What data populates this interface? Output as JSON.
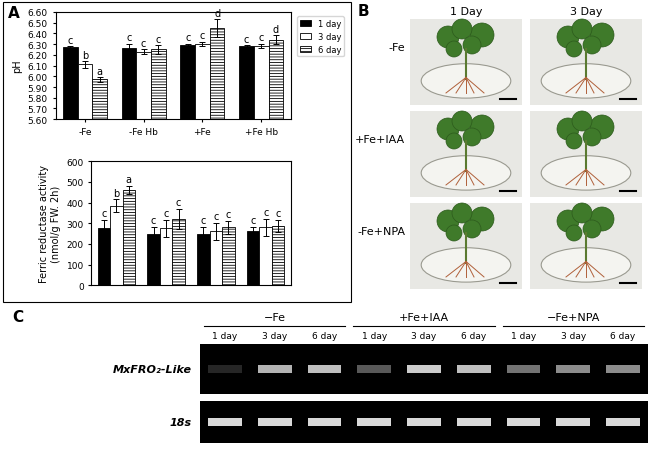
{
  "chart_data": [
    {
      "type": "bar",
      "panel": "A",
      "ylabel": "pH",
      "categories": [
        "-Fe",
        "-Fe Hb",
        "+Fe",
        "+Fe Hb"
      ],
      "ylim": [
        5.6,
        6.6
      ],
      "yticks": [
        {
          "value": 5.6,
          "label": "5.60"
        },
        {
          "value": 5.7,
          "label": "5.70"
        },
        {
          "value": 5.8,
          "label": "5.80"
        },
        {
          "value": 5.9,
          "label": "5.90"
        },
        {
          "value": 6.0,
          "label": "6.00"
        },
        {
          "value": 6.1,
          "label": "6.10"
        },
        {
          "value": 6.2,
          "label": "6.20"
        },
        {
          "value": 6.3,
          "label": "6.30"
        },
        {
          "value": 6.4,
          "label": "6.40"
        },
        {
          "value": 6.5,
          "label": "6.50"
        },
        {
          "value": 6.6,
          "label": "6.60"
        }
      ],
      "legend": "upper right",
      "series": [
        {
          "name": "1 day",
          "color": "#000000",
          "values": [
            6.27,
            6.26,
            6.29,
            6.28
          ],
          "errors": [
            0.01,
            0.04,
            0.01,
            0.01
          ],
          "letters": [
            "c",
            "c",
            "c",
            "c"
          ]
        },
        {
          "name": "3 day",
          "color": "#ffffff",
          "values": [
            6.11,
            6.23,
            6.3,
            6.28
          ],
          "errors": [
            0.03,
            0.02,
            0.02,
            0.02
          ],
          "letters": [
            "b",
            "c",
            "c",
            "c"
          ]
        },
        {
          "name": "6 day",
          "color": "#ffffff",
          "values": [
            5.97,
            6.25,
            6.45,
            6.34
          ],
          "errors": [
            0.02,
            0.04,
            0.08,
            0.04
          ],
          "letters": [
            "a",
            "c",
            "d",
            "d"
          ]
        }
      ]
    },
    {
      "type": "bar",
      "ylabel": "Ferric reductase activity\n(nmol/g FW. 2h)",
      "categories": [
        null,
        null,
        null,
        null
      ],
      "ylim": [
        0,
        600
      ],
      "yticks": [
        0,
        100,
        200,
        300,
        400,
        500,
        600
      ],
      "series": [
        {
          "name": "1 day",
          "color": "#000000",
          "values": [
            275,
            250,
            250,
            260
          ],
          "errors": [
            40,
            30,
            30,
            20
          ],
          "letters": [
            "c",
            "c",
            "c",
            "c"
          ]
        },
        {
          "name": "3 day",
          "color": "#ffffff",
          "values": [
            385,
            275,
            260,
            280
          ],
          "errors": [
            30,
            40,
            40,
            40
          ],
          "letters": [
            "b",
            "c",
            "c",
            "c"
          ]
        },
        {
          "name": "6 day",
          "color": "#ffffff",
          "values": [
            460,
            320,
            280,
            285
          ],
          "errors": [
            20,
            50,
            30,
            30
          ],
          "letters": [
            "a",
            "c",
            "c",
            "c"
          ]
        }
      ]
    }
  ],
  "photos": {
    "panel": "B",
    "columns": [
      "1 Day",
      "3 Day"
    ],
    "rows": [
      "-Fe",
      "+Fe+IAA",
      "-Fe+NPA"
    ]
  },
  "gel": {
    "panel": "C",
    "groups": [
      "−Fe",
      "+Fe+IAA",
      "−Fe+NPA"
    ],
    "lanes": [
      "1 day",
      "3 day",
      "6 day"
    ],
    "rows": [
      {
        "label": "MxFRO₂-Like",
        "band_intensity": [
          0.15,
          0.7,
          0.75,
          0.35,
          0.8,
          0.75,
          0.45,
          0.55,
          0.55
        ]
      },
      {
        "label": "18s",
        "band_intensity": [
          0.85,
          0.85,
          0.85,
          0.85,
          0.85,
          0.85,
          0.85,
          0.85,
          0.85
        ]
      }
    ]
  }
}
